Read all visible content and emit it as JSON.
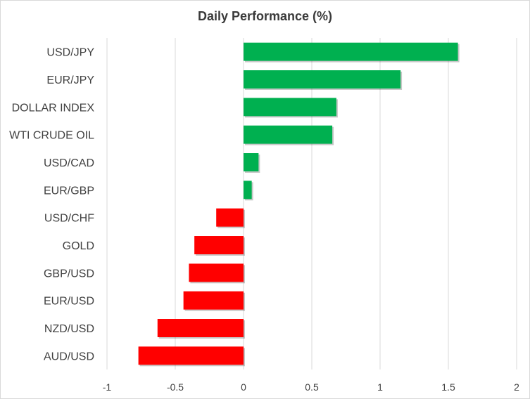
{
  "chart_data": {
    "type": "bar",
    "orientation": "horizontal",
    "title": "Daily Performance (%)",
    "xlabel": "",
    "ylabel": "",
    "xlim": [
      -1,
      2
    ],
    "xticks": [
      "-1",
      "-0.5",
      "0",
      "0.5",
      "1",
      "1.5",
      "2"
    ],
    "grid": "vertical",
    "legend": "none",
    "categories": [
      "USD/JPY",
      "EUR/JPY",
      "DOLLAR INDEX",
      "WTI CRUDE OIL",
      "USD/CAD",
      "EUR/GBP",
      "USD/CHF",
      "GOLD",
      "GBP/USD",
      "EUR/USD",
      "NZD/USD",
      "AUD/USD"
    ],
    "values": [
      1.57,
      1.15,
      0.68,
      0.65,
      0.11,
      0.06,
      -0.2,
      -0.36,
      -0.4,
      -0.44,
      -0.63,
      -0.77
    ],
    "colors": {
      "positive": "#00b050",
      "negative": "#ff0000",
      "grid": "#d9d9d9"
    }
  }
}
